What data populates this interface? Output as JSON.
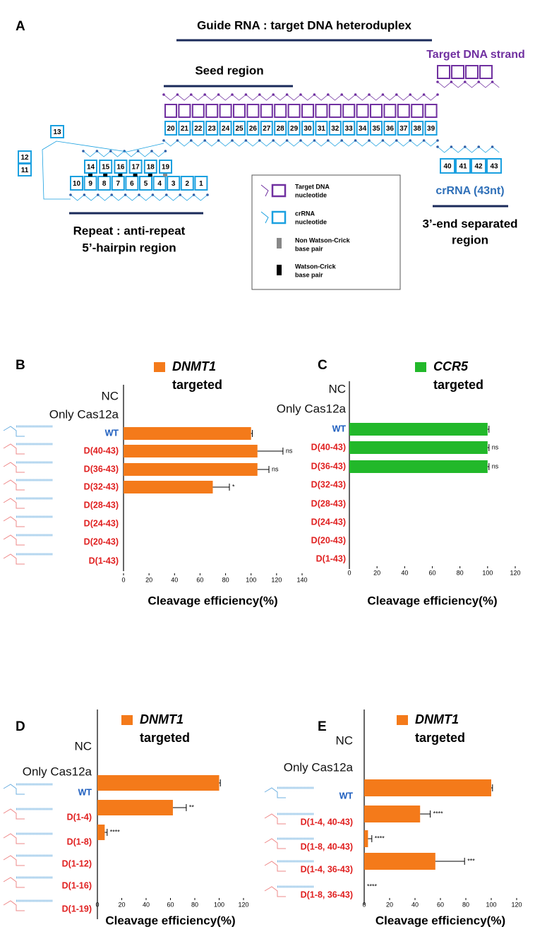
{
  "figure": {
    "panel_a": {
      "label": "A",
      "heteroduplex_title": "Guide RNA : target DNA heteroduplex",
      "target_strand": "Target DNA strand",
      "seed_region": "Seed region",
      "crrna": "crRNA (43nt)",
      "separated_region": [
        "3’-end separated",
        "region"
      ],
      "hairpin_region": [
        "Repeat : anti-repeat",
        "5’-hairpin region"
      ],
      "heteroduplex_nucleotides": [
        20,
        21,
        22,
        23,
        24,
        25,
        26,
        27,
        28,
        29,
        30,
        31,
        32,
        33,
        34,
        35,
        36,
        37,
        38,
        39
      ],
      "separated_nucleotides": [
        40,
        41,
        42,
        43
      ],
      "hairpin_stem_top": [
        14,
        15,
        16,
        17,
        18,
        19
      ],
      "hairpin_stem_bottom": [
        10,
        9,
        8,
        7,
        6,
        5,
        4,
        3,
        2,
        1
      ],
      "loop_nucleotides": [
        11,
        12,
        13
      ],
      "legend": [
        [
          "Target DNA",
          "nucleotide"
        ],
        [
          "crRNA",
          "nucleotide"
        ],
        [
          "Non Watson-Crick",
          "base pair"
        ],
        [
          "Watson-Crick",
          "base pair"
        ]
      ]
    }
  },
  "chart_data": [
    {
      "type": "bar",
      "orientation": "horizontal",
      "panel_label": "B",
      "categories": [
        "NC",
        "Only Cas12a",
        "WT",
        "D(40-43)",
        "D(36-43)",
        "D(32-43)",
        "D(28-43)",
        "D(24-43)",
        "D(20-43)",
        "D(1-43)"
      ],
      "category_colors": [
        "#111111",
        "#111111",
        "#1f5fbf",
        "#e02020",
        "#e02020",
        "#e02020",
        "#e02020",
        "#e02020",
        "#e02020",
        "#e02020"
      ],
      "series": [
        {
          "name": "DNMT1",
          "color": "#f47a1a",
          "values": [
            0,
            0,
            100,
            105,
            105,
            70,
            0,
            0,
            0,
            0
          ],
          "errors": [
            null,
            null,
            1,
            20,
            9,
            13,
            null,
            null,
            null,
            null
          ]
        }
      ],
      "legend_note": "targeted",
      "significance": [
        null,
        null,
        null,
        "ns",
        "ns",
        "*",
        null,
        null,
        null,
        null
      ],
      "xlabel": "Cleavage efficiency(%)",
      "xlim": [
        0,
        140
      ],
      "xticks": [
        0,
        20,
        40,
        60,
        80,
        100,
        120,
        140
      ]
    },
    {
      "type": "bar",
      "orientation": "horizontal",
      "panel_label": "C",
      "categories": [
        "NC",
        "Only Cas12a",
        "WT",
        "D(40-43)",
        "D(36-43)",
        "D(32-43)",
        "D(28-43)",
        "D(24-43)",
        "D(20-43)",
        "D(1-43)"
      ],
      "category_colors": [
        "#111111",
        "#111111",
        "#1f5fbf",
        "#e02020",
        "#e02020",
        "#e02020",
        "#e02020",
        "#e02020",
        "#e02020",
        "#e02020"
      ],
      "series": [
        {
          "name": "CCR5",
          "color": "#22b82a",
          "values": [
            0,
            0,
            100,
            100,
            100,
            0,
            0,
            0,
            0,
            0
          ],
          "errors": [
            null,
            null,
            1,
            1,
            1,
            null,
            null,
            null,
            null,
            null
          ]
        }
      ],
      "legend_note": "targeted",
      "significance": [
        null,
        null,
        null,
        "ns",
        "ns",
        null,
        null,
        null,
        null,
        null
      ],
      "xlabel": "Cleavage efficiency(%)",
      "xlim": [
        0,
        120
      ],
      "xticks": [
        0,
        20,
        40,
        60,
        80,
        100,
        120
      ]
    },
    {
      "type": "bar",
      "orientation": "horizontal",
      "panel_label": "D",
      "categories": [
        "NC",
        "Only Cas12a",
        "WT",
        "D(1-4)",
        "D(1-8)",
        "D(1-12)",
        "D(1-16)",
        "D(1-19)"
      ],
      "category_colors": [
        "#111111",
        "#111111",
        "#1f5fbf",
        "#e02020",
        "#e02020",
        "#e02020",
        "#e02020",
        "#e02020"
      ],
      "series": [
        {
          "name": "DNMT1",
          "color": "#f47a1a",
          "values": [
            0,
            0,
            100,
            62,
            6,
            0,
            0,
            0
          ],
          "errors": [
            null,
            null,
            1,
            11,
            2,
            null,
            null,
            null
          ]
        }
      ],
      "legend_note": "targeted",
      "significance": [
        null,
        null,
        null,
        "**",
        "****",
        null,
        null,
        null
      ],
      "xlabel": "Cleavage efficiency(%)",
      "xlim": [
        0,
        120
      ],
      "xticks": [
        0,
        20,
        40,
        60,
        80,
        100,
        120
      ]
    },
    {
      "type": "bar",
      "orientation": "horizontal",
      "panel_label": "E",
      "categories": [
        "NC",
        "Only Cas12a",
        "WT",
        "D(1-4, 40-43)",
        "D(1-8, 40-43)",
        "D(1-4, 36-43)",
        "D(1-8, 36-43)"
      ],
      "category_colors": [
        "#111111",
        "#111111",
        "#1f5fbf",
        "#e02020",
        "#e02020",
        "#e02020",
        "#e02020"
      ],
      "series": [
        {
          "name": "DNMT1",
          "color": "#f47a1a",
          "values": [
            0,
            0,
            100,
            44,
            3,
            56,
            0
          ],
          "errors": [
            null,
            null,
            1,
            8,
            3,
            23,
            null
          ]
        }
      ],
      "legend_note": "targeted",
      "significance": [
        null,
        null,
        null,
        "****",
        "****",
        "***",
        "****"
      ],
      "xlabel": "Cleavage efficiency(%)",
      "xlim": [
        0,
        120
      ],
      "xticks": [
        0,
        20,
        40,
        60,
        80,
        100,
        120
      ]
    }
  ]
}
